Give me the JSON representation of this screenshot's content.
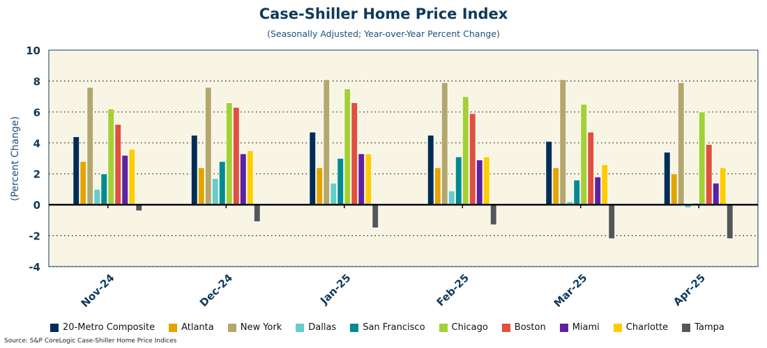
{
  "chart_data": {
    "type": "bar",
    "title": "Case-Shiller Home Price Index",
    "subtitle": "(Seasonally Adjusted; Year-over-Year Percent Change)",
    "xlabel": "",
    "ylabel": "(Percent Change)",
    "ylim": [
      -4,
      10
    ],
    "yticks": [
      "-4",
      "-2",
      "0",
      "2",
      "4",
      "6",
      "8",
      "10"
    ],
    "grid": true,
    "legend_position": "bottom",
    "categories": [
      "Nov-24",
      "Dec-24",
      "Jan-25",
      "Feb-25",
      "Mar-25",
      "Apr-25"
    ],
    "series": [
      {
        "name": "20-Metro Composite",
        "color": "#002d56",
        "values": [
          4.4,
          4.5,
          4.7,
          4.5,
          4.1,
          3.4
        ]
      },
      {
        "name": "Atlanta",
        "color": "#e4a400",
        "values": [
          2.8,
          2.4,
          2.4,
          2.4,
          2.4,
          2.0
        ]
      },
      {
        "name": "New York",
        "color": "#b4a76c",
        "values": [
          7.6,
          7.6,
          8.1,
          7.9,
          8.1,
          7.9
        ]
      },
      {
        "name": "Dallas",
        "color": "#66cccc",
        "values": [
          1.0,
          1.7,
          1.4,
          0.9,
          0.2,
          -0.2
        ]
      },
      {
        "name": "San Francisco",
        "color": "#008b91",
        "values": [
          2.0,
          2.8,
          3.0,
          3.1,
          1.6,
          0.1
        ]
      },
      {
        "name": "Chicago",
        "color": "#a3d133",
        "values": [
          6.2,
          6.6,
          7.5,
          7.0,
          6.5,
          6.0
        ]
      },
      {
        "name": "Boston",
        "color": "#e0503e",
        "values": [
          5.2,
          6.3,
          6.6,
          5.9,
          4.7,
          3.9
        ]
      },
      {
        "name": "Miami",
        "color": "#5e22a0",
        "values": [
          3.2,
          3.3,
          3.3,
          2.9,
          1.8,
          1.4
        ]
      },
      {
        "name": "Charlotte",
        "color": "#ffcc00",
        "values": [
          3.6,
          3.5,
          3.3,
          3.1,
          2.6,
          2.4
        ]
      },
      {
        "name": "Tampa",
        "color": "#53575a",
        "values": [
          -0.4,
          -1.1,
          -1.5,
          -1.3,
          -2.2,
          -2.2
        ]
      }
    ]
  },
  "source": "Source: S&P CoreLogic Case-Shiller Home Price Indices"
}
